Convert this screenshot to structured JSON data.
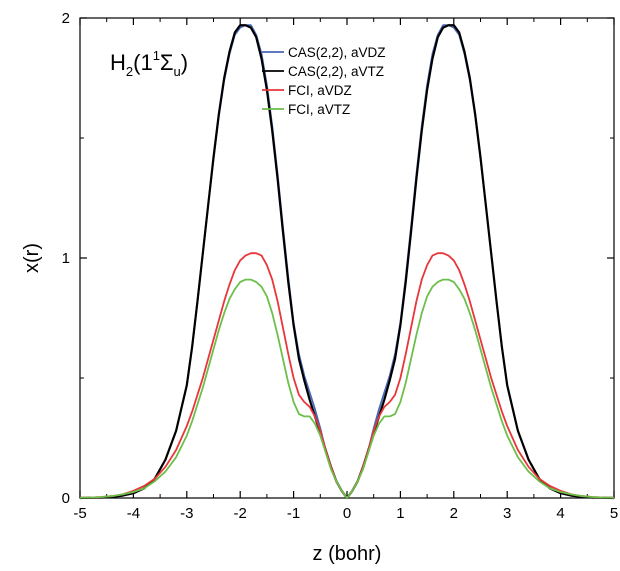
{
  "chart_data": {
    "type": "line",
    "inset_label": {
      "main": "H",
      "sub1": "2",
      "paren_open": "(1",
      "sup": "1",
      "sigma": "Σ",
      "sub2": "u",
      "paren_close": ")"
    },
    "xlabel": "z (bohr)",
    "ylabel": "x(r)",
    "xlim": [
      -5,
      5
    ],
    "ylim": [
      0,
      2
    ],
    "x_ticks": [
      -5,
      -4,
      -3,
      -2,
      -1,
      0,
      1,
      2,
      3,
      4,
      5
    ],
    "x_tick_labels": [
      "-5",
      "-4",
      "-3",
      "-2",
      "-1",
      "0",
      "1",
      "2",
      "3",
      "4",
      "5"
    ],
    "y_ticks": [
      0,
      1,
      2
    ],
    "y_tick_labels": [
      "0",
      "1",
      "2"
    ],
    "legend_position": "top-right",
    "grid": false,
    "series": [
      {
        "name": "CAS(2,2), aVDZ",
        "color": "#4a67b4",
        "x": [
          0,
          0.1,
          0.2,
          0.3,
          0.4,
          0.5,
          0.6,
          0.7,
          0.8,
          0.9,
          1.0,
          1.1,
          1.2,
          1.3,
          1.4,
          1.5,
          1.6,
          1.7,
          1.8,
          1.9,
          2.0,
          2.1,
          2.2,
          2.3,
          2.4,
          2.5,
          2.6,
          2.7,
          2.8,
          2.9,
          3.0,
          3.2,
          3.4,
          3.6,
          3.8,
          4.0,
          4.2,
          4.4,
          4.6,
          4.8,
          5.0
        ],
        "y": [
          0,
          0.03,
          0.07,
          0.13,
          0.2,
          0.29,
          0.37,
          0.44,
          0.51,
          0.6,
          0.73,
          0.92,
          1.13,
          1.35,
          1.55,
          1.72,
          1.85,
          1.93,
          1.97,
          1.97,
          1.96,
          1.93,
          1.85,
          1.74,
          1.59,
          1.41,
          1.22,
          1.02,
          0.82,
          0.63,
          0.47,
          0.28,
          0.16,
          0.08,
          0.04,
          0.02,
          0.01,
          0.005,
          0.002,
          0.001,
          0
        ]
      },
      {
        "name": "CAS(2,2), aVTZ",
        "color": "#000000",
        "x": [
          0,
          0.1,
          0.2,
          0.3,
          0.4,
          0.5,
          0.6,
          0.7,
          0.8,
          0.9,
          1.0,
          1.1,
          1.2,
          1.3,
          1.4,
          1.5,
          1.6,
          1.7,
          1.8,
          1.9,
          2.0,
          2.1,
          2.2,
          2.3,
          2.4,
          2.5,
          2.6,
          2.7,
          2.8,
          2.9,
          3.0,
          3.2,
          3.4,
          3.6,
          3.8,
          4.0,
          4.2,
          4.4,
          4.6,
          4.8,
          5.0
        ],
        "y": [
          0,
          0.03,
          0.07,
          0.13,
          0.2,
          0.27,
          0.34,
          0.41,
          0.49,
          0.58,
          0.72,
          0.9,
          1.11,
          1.33,
          1.53,
          1.7,
          1.83,
          1.92,
          1.96,
          1.97,
          1.97,
          1.94,
          1.86,
          1.75,
          1.6,
          1.42,
          1.22,
          1.02,
          0.82,
          0.63,
          0.47,
          0.28,
          0.16,
          0.08,
          0.04,
          0.02,
          0.01,
          0.005,
          0.002,
          0.001,
          0
        ]
      },
      {
        "name": "FCI, aVDZ",
        "color": "#e8363a",
        "x": [
          0,
          0.1,
          0.2,
          0.3,
          0.4,
          0.5,
          0.6,
          0.7,
          0.8,
          0.9,
          1.0,
          1.1,
          1.2,
          1.3,
          1.4,
          1.5,
          1.6,
          1.7,
          1.8,
          1.9,
          2.0,
          2.1,
          2.2,
          2.3,
          2.4,
          2.5,
          2.6,
          2.7,
          2.8,
          2.9,
          3.0,
          3.2,
          3.4,
          3.6,
          3.8,
          4.0,
          4.2,
          4.4,
          4.6,
          4.8,
          5.0
        ],
        "y": [
          0,
          0.03,
          0.07,
          0.13,
          0.2,
          0.28,
          0.34,
          0.38,
          0.4,
          0.43,
          0.5,
          0.6,
          0.71,
          0.82,
          0.91,
          0.97,
          1.01,
          1.02,
          1.02,
          1.01,
          0.99,
          0.95,
          0.89,
          0.82,
          0.74,
          0.66,
          0.58,
          0.5,
          0.43,
          0.36,
          0.3,
          0.2,
          0.13,
          0.08,
          0.05,
          0.03,
          0.015,
          0.008,
          0.004,
          0.002,
          0.001
        ]
      },
      {
        "name": "FCI, aVTZ",
        "color": "#6cbf4a",
        "x": [
          0,
          0.1,
          0.2,
          0.3,
          0.4,
          0.5,
          0.6,
          0.7,
          0.8,
          0.9,
          1.0,
          1.1,
          1.2,
          1.3,
          1.4,
          1.5,
          1.6,
          1.7,
          1.8,
          1.9,
          2.0,
          2.1,
          2.2,
          2.3,
          2.4,
          2.5,
          2.6,
          2.7,
          2.8,
          2.9,
          3.0,
          3.2,
          3.4,
          3.6,
          3.8,
          4.0,
          4.2,
          4.4,
          4.6,
          4.8,
          5.0
        ],
        "y": [
          0,
          0.03,
          0.07,
          0.12,
          0.19,
          0.26,
          0.31,
          0.34,
          0.34,
          0.35,
          0.4,
          0.48,
          0.58,
          0.68,
          0.77,
          0.84,
          0.88,
          0.9,
          0.91,
          0.91,
          0.9,
          0.87,
          0.83,
          0.77,
          0.7,
          0.62,
          0.54,
          0.46,
          0.39,
          0.32,
          0.26,
          0.17,
          0.11,
          0.07,
          0.04,
          0.025,
          0.015,
          0.008,
          0.004,
          0.002,
          0.001
        ]
      }
    ]
  }
}
